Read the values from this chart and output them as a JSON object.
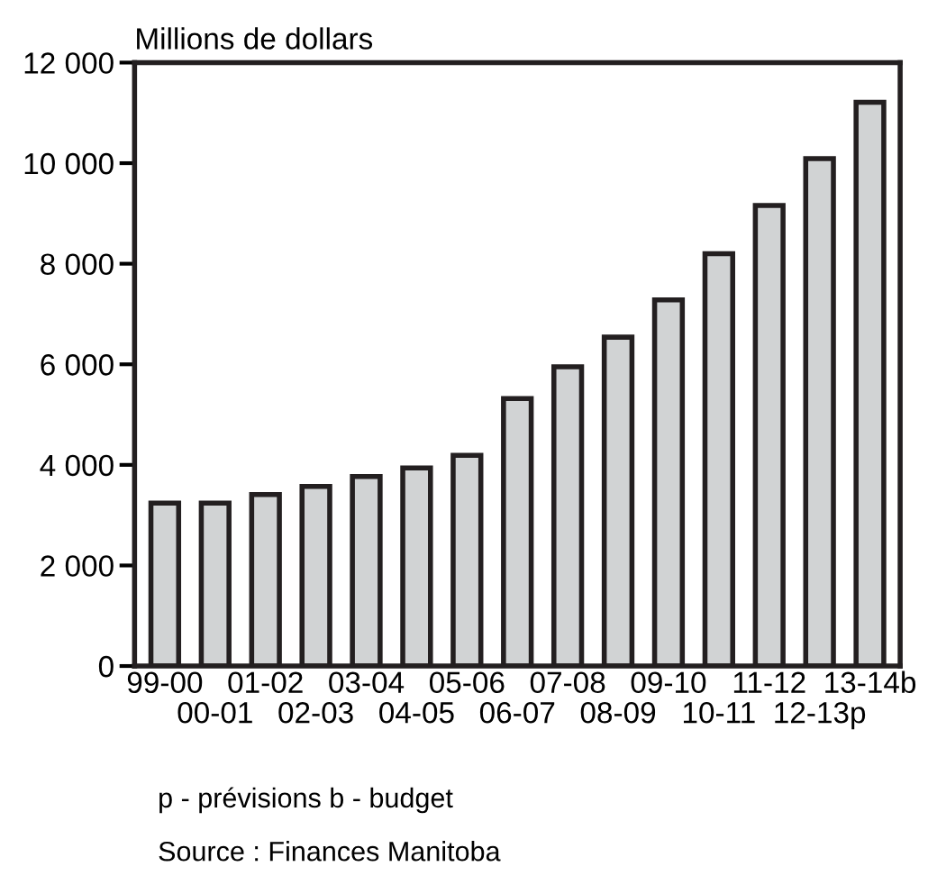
{
  "chart_data": {
    "type": "bar",
    "ylabel": "Millions de dollars",
    "categories": [
      "99-00",
      "00-01",
      "01-02",
      "02-03",
      "03-04",
      "04-05",
      "05-06",
      "06-07",
      "07-08",
      "08-09",
      "09-10",
      "10-11",
      "11-12",
      "12-13p",
      "13-14b"
    ],
    "values": [
      3240,
      3240,
      3410,
      3570,
      3770,
      3940,
      4190,
      5320,
      5950,
      6540,
      7280,
      8200,
      9160,
      10090,
      11210
    ],
    "color": "#d1d3d4",
    "ylim": [
      0,
      12000
    ],
    "yticks": [
      {
        "value": 0,
        "label": "0"
      },
      {
        "value": 2000,
        "label": "2 000"
      },
      {
        "value": 4000,
        "label": "4 000"
      },
      {
        "value": 6000,
        "label": "6 000"
      },
      {
        "value": 8000,
        "label": "8 000"
      },
      {
        "value": 10000,
        "label": "10 000"
      },
      {
        "value": 12000,
        "label": "12 000"
      }
    ],
    "grid": false,
    "annotations": [
      "p - prévisions b - budget",
      "Source : Finances Manitoba"
    ]
  }
}
